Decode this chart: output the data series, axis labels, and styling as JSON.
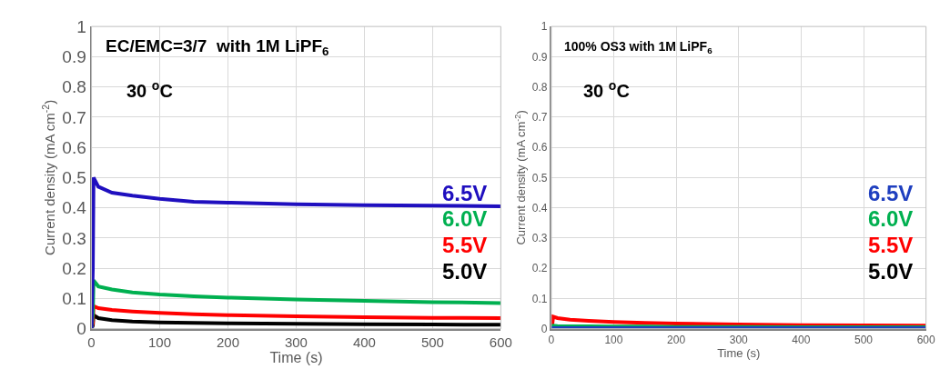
{
  "chart_data": [
    {
      "type": "line",
      "xlabel": "Time (s)",
      "ylabel": "Current density (mA cm$^{-2}$)",
      "annotations": [
        "EC/EMC=3/7  with 1M LiPF$_{6}$",
        "30 $^{o}$C"
      ],
      "x": [
        0,
        2,
        3,
        10,
        30,
        60,
        100,
        150,
        200,
        300,
        400,
        500,
        600
      ],
      "xlim": [
        0,
        600
      ],
      "xticks": [
        0,
        100,
        200,
        300,
        400,
        500,
        600
      ],
      "ylim": [
        0,
        1
      ],
      "yticks": [
        0,
        0.1,
        0.2,
        0.3,
        0.4,
        0.5,
        0.6,
        0.7,
        0.8,
        0.9,
        1
      ],
      "grid": true,
      "marker": "none",
      "line_style": "solid",
      "series": [
        {
          "name": "6.5V",
          "color": "#1f0fbf",
          "values": [
            0,
            0.2,
            0.5,
            0.47,
            0.45,
            0.44,
            0.43,
            0.42,
            0.417,
            0.412,
            0.409,
            0.407,
            0.405
          ]
        },
        {
          "name": "6.0V",
          "color": "#00b050",
          "values": [
            0,
            0.05,
            0.16,
            0.14,
            0.13,
            0.12,
            0.113,
            0.107,
            0.103,
            0.097,
            0.092,
            0.088,
            0.085
          ]
        },
        {
          "name": "5.5V",
          "color": "#ff0000",
          "values": [
            0,
            0.02,
            0.075,
            0.068,
            0.062,
            0.057,
            0.052,
            0.048,
            0.045,
            0.041,
            0.038,
            0.036,
            0.035
          ]
        },
        {
          "name": "5.0V",
          "color": "#000000",
          "values": [
            0,
            0.01,
            0.045,
            0.035,
            0.028,
            0.024,
            0.021,
            0.019,
            0.018,
            0.016,
            0.015,
            0.014,
            0.013
          ]
        }
      ]
    },
    {
      "type": "line",
      "xlabel": "Time (s)",
      "ylabel": "Current density (mA cm$^{-2}$)",
      "annotations": [
        "100% OS3 with 1M LiPF$_{6}$",
        "30 $^{o}$C"
      ],
      "x": [
        0,
        2,
        3,
        10,
        30,
        60,
        100,
        150,
        200,
        300,
        400,
        500,
        600
      ],
      "xlim": [
        0,
        600
      ],
      "xticks": [
        0,
        100,
        200,
        300,
        400,
        500,
        600
      ],
      "ylim": [
        0,
        1
      ],
      "yticks": [
        0,
        0.1,
        0.2,
        0.3,
        0.4,
        0.5,
        0.6,
        0.7,
        0.8,
        0.9,
        1
      ],
      "grid": true,
      "marker": "none",
      "line_style": "solid",
      "series": [
        {
          "name": "6.5V",
          "color": "#1f3fbf",
          "values": [
            0,
            0.002,
            0.002,
            0.002,
            0.002,
            0.002,
            0.002,
            0.002,
            0.002,
            0.002,
            0.002,
            0.002,
            0.002
          ]
        },
        {
          "name": "6.0V",
          "color": "#00b050",
          "values": [
            0,
            0.008,
            0.01,
            0.009,
            0.008,
            0.008,
            0.007,
            0.007,
            0.006,
            0.006,
            0.005,
            0.005,
            0.005
          ]
        },
        {
          "name": "5.5V",
          "color": "#ff0000",
          "values": [
            0,
            0.02,
            0.04,
            0.035,
            0.03,
            0.026,
            0.022,
            0.019,
            0.017,
            0.014,
            0.012,
            0.011,
            0.01
          ]
        },
        {
          "name": "5.0V",
          "color": "#000000",
          "values": [
            null,
            null,
            null,
            null,
            null,
            null,
            null,
            null,
            null,
            null,
            null,
            null,
            null
          ]
        }
      ]
    }
  ]
}
